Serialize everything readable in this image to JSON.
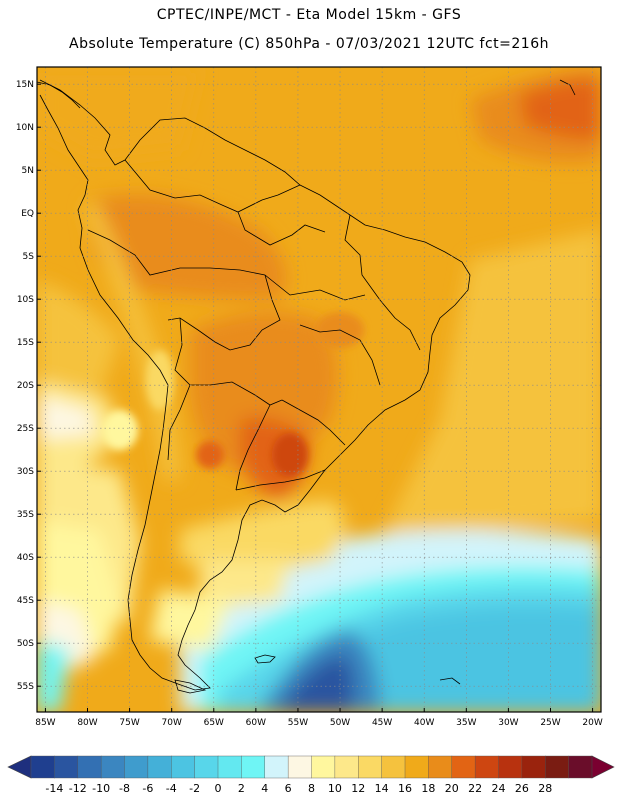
{
  "header": {
    "line1": "CPTEC/INPE/MCT -  Eta Model 15km - GFS",
    "line2": "Absolute Temperature (C) 850hPa - 07/03/2021 12UTC fct=216h"
  },
  "map": {
    "region": "South America",
    "lat_labels": [
      "15N",
      "10N",
      "5N",
      "EQ",
      "5S",
      "10S",
      "15S",
      "20S",
      "25S",
      "30S",
      "35S",
      "40S",
      "45S",
      "50S",
      "55S"
    ],
    "lat_values": [
      15,
      10,
      5,
      0,
      -5,
      -10,
      -15,
      -20,
      -25,
      -30,
      -35,
      -40,
      -45,
      -50,
      -55
    ],
    "lon_labels": [
      "85W",
      "80W",
      "75W",
      "70W",
      "65W",
      "60W",
      "55W",
      "50W",
      "45W",
      "40W",
      "35W",
      "30W",
      "25W",
      "20W"
    ],
    "lon_values": [
      -85,
      -80,
      -75,
      -70,
      -65,
      -60,
      -55,
      -50,
      -45,
      -40,
      -35,
      -30,
      -25,
      -20
    ],
    "lon_range": [
      -86,
      -19
    ],
    "lat_range": [
      -58,
      17
    ]
  },
  "colorbar": {
    "labels": [
      "-14",
      "-12",
      "-10",
      "-8",
      "-6",
      "-4",
      "-2",
      "0",
      "2",
      "4",
      "6",
      "8",
      "10",
      "12",
      "14",
      "16",
      "18",
      "20",
      "22",
      "24",
      "26",
      "28"
    ],
    "colors": [
      "#1f3f8f",
      "#2a55a0",
      "#3370b3",
      "#3b86c0",
      "#3f9ccd",
      "#44b0d8",
      "#4cc4e2",
      "#58d6ea",
      "#63e8f0",
      "#6ff5f5",
      "#d2f4fb",
      "#fdf7e3",
      "#fff79e",
      "#fde88a",
      "#fad964",
      "#f5c23e",
      "#f0aa1a",
      "#e98c1a",
      "#e26414",
      "#ce4611",
      "#b8320f",
      "#9a230d",
      "#7a1c12",
      "#6a0d2a"
    ],
    "left_arrow_color": "#1e2f7e",
    "right_arrow_color": "#7a0030"
  }
}
